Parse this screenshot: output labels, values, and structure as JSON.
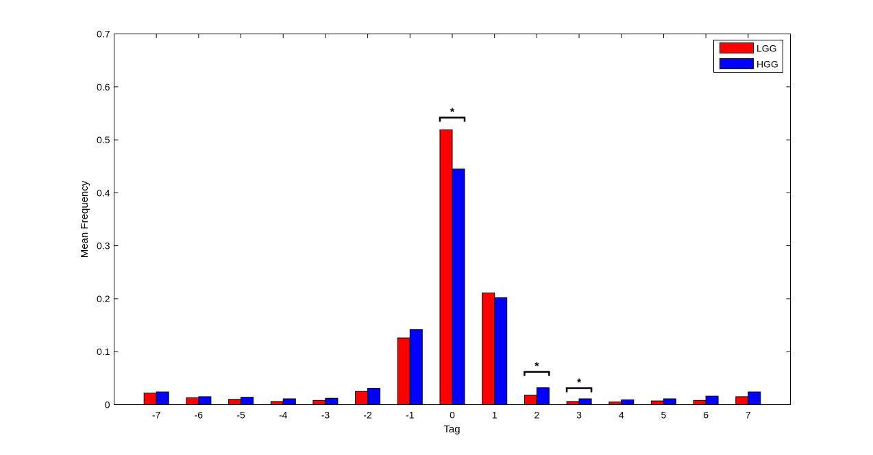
{
  "chart_data": {
    "type": "bar",
    "title": "",
    "xlabel": "Tag",
    "ylabel": "Mean Frequency",
    "categories": [
      "-7",
      "-6",
      "-5",
      "-4",
      "-3",
      "-2",
      "-1",
      "0",
      "1",
      "2",
      "3",
      "4",
      "5",
      "6",
      "7"
    ],
    "series": [
      {
        "name": "LGG",
        "color": "#ff0000",
        "values": [
          0.022,
          0.013,
          0.01,
          0.006,
          0.008,
          0.025,
          0.126,
          0.519,
          0.211,
          0.018,
          0.006,
          0.005,
          0.007,
          0.008,
          0.015
        ]
      },
      {
        "name": "HGG",
        "color": "#0000ff",
        "values": [
          0.024,
          0.015,
          0.014,
          0.011,
          0.012,
          0.031,
          0.142,
          0.445,
          0.202,
          0.032,
          0.011,
          0.009,
          0.011,
          0.016,
          0.024
        ]
      }
    ],
    "ylim": [
      0,
      0.7
    ],
    "yticks": [
      "0",
      "0.1",
      "0.2",
      "0.3",
      "0.4",
      "0.5",
      "0.6",
      "0.7"
    ],
    "grid": false,
    "legend_position": "top-right",
    "significance": [
      {
        "category": "0",
        "label": "*",
        "level": 0.542
      },
      {
        "category": "2",
        "label": "*",
        "level": 0.062
      },
      {
        "category": "3",
        "label": "*",
        "level": 0.031
      }
    ]
  }
}
